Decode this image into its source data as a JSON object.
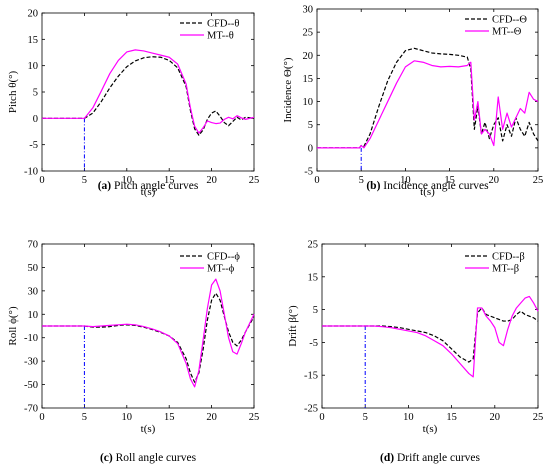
{
  "chart_data": [
    {
      "type": "line",
      "panel_tag": "(a)",
      "caption": "Pitch angle curves",
      "xlabel": "t(s)",
      "ylabel": "Pitch θ(°)",
      "xlim": [
        0,
        25
      ],
      "ylim": [
        -10,
        20
      ],
      "xticks": [
        0,
        5,
        10,
        15,
        20,
        25
      ],
      "yticks": [
        -10,
        -5,
        0,
        5,
        10,
        15,
        20
      ],
      "legend_position": "top-right",
      "grid": false,
      "event_line_x": 5,
      "series": [
        {
          "name": "CFD--θ",
          "color": "#000000",
          "dash": "dashed",
          "x": [
            0,
            5,
            6,
            7,
            8,
            9,
            10,
            11,
            12,
            13,
            14,
            15,
            16,
            17,
            17.5,
            18,
            18.5,
            19,
            19.5,
            20,
            20.5,
            21,
            21.5,
            22,
            22.5,
            23,
            23.5,
            24,
            25
          ],
          "y": [
            0,
            0,
            1.0,
            3.2,
            5.8,
            8.0,
            9.8,
            10.9,
            11.5,
            11.7,
            11.6,
            11.0,
            9.6,
            6.0,
            1.5,
            -2.0,
            -3.2,
            -2.2,
            -0.2,
            1.0,
            1.4,
            0.4,
            -0.8,
            -1.4,
            -0.6,
            0.2,
            -0.3,
            0.2,
            0.0
          ]
        },
        {
          "name": "MT--θ",
          "color": "#ff00ff",
          "dash": "solid",
          "x": [
            0,
            5,
            6,
            7,
            8,
            9,
            10,
            11,
            12,
            13,
            14,
            15,
            16,
            17,
            17.5,
            18,
            18.5,
            19,
            19.5,
            20,
            20.5,
            21,
            21.5,
            22,
            22.5,
            23,
            23.5,
            24,
            25
          ],
          "y": [
            0,
            0,
            2.0,
            5.2,
            8.5,
            11.0,
            12.6,
            13.0,
            12.8,
            12.4,
            12.0,
            11.6,
            10.3,
            6.5,
            2.0,
            -1.5,
            -2.8,
            -1.8,
            -0.5,
            -0.8,
            -1.0,
            -0.9,
            -0.2,
            0.2,
            -0.1,
            0.5,
            0.1,
            -0.2,
            0.2
          ]
        }
      ]
    },
    {
      "type": "line",
      "panel_tag": "(b)",
      "caption": "Incidence angle curves",
      "xlabel": "t(s)",
      "ylabel": "Incidence Θ(°)",
      "xlim": [
        0,
        25
      ],
      "ylim": [
        -5,
        30
      ],
      "xticks": [
        0,
        5,
        10,
        15,
        20,
        25
      ],
      "yticks": [
        -5,
        0,
        5,
        10,
        15,
        20,
        25,
        30
      ],
      "legend_position": "top-right",
      "grid": false,
      "event_line_x": 5,
      "series": [
        {
          "name": "CFD--Θ",
          "color": "#000000",
          "dash": "dashed",
          "x": [
            0,
            4.8,
            5.0,
            5.3,
            6,
            7,
            8,
            9,
            10,
            11,
            12,
            13,
            14,
            15,
            16,
            17,
            17.4,
            17.8,
            18.2,
            18.6,
            19,
            19.5,
            20,
            20.5,
            21,
            21.5,
            22,
            22.5,
            23,
            23.5,
            24,
            24.5,
            25
          ],
          "y": [
            0,
            0,
            0.5,
            0.3,
            3.0,
            9.0,
            14.5,
            18.5,
            21.0,
            21.5,
            21.0,
            20.5,
            20.3,
            20.2,
            20.0,
            19.6,
            17.0,
            4.0,
            9.0,
            3.0,
            5.5,
            2.0,
            5.0,
            6.5,
            1.5,
            5.0,
            2.5,
            6.5,
            4.0,
            2.5,
            5.5,
            3.0,
            1.5
          ]
        },
        {
          "name": "MT--Θ",
          "color": "#ff00ff",
          "dash": "solid",
          "x": [
            0,
            4.8,
            5.0,
            5.3,
            6,
            7,
            8,
            9,
            10,
            11,
            12,
            13,
            14,
            15,
            16,
            17,
            17.4,
            17.8,
            18.2,
            18.6,
            19,
            19.5,
            20,
            20.5,
            21,
            21.5,
            22,
            22.5,
            23,
            23.5,
            24,
            24.5,
            25
          ],
          "y": [
            0,
            0,
            0.5,
            0.0,
            2.0,
            6.0,
            10.0,
            14.0,
            17.5,
            18.8,
            18.5,
            17.8,
            17.5,
            17.6,
            17.5,
            17.8,
            18.5,
            6.0,
            10.0,
            3.0,
            4.0,
            3.0,
            0.5,
            11.0,
            4.0,
            7.5,
            4.5,
            6.5,
            8.5,
            7.5,
            12.0,
            10.5,
            10.0
          ]
        }
      ]
    },
    {
      "type": "line",
      "panel_tag": "(c)",
      "caption": "Roll angle curves",
      "xlabel": "t(s)",
      "ylabel": "Roll ϕ(°)",
      "xlim": [
        0,
        25
      ],
      "ylim": [
        -70,
        70
      ],
      "xticks": [
        0,
        5,
        10,
        15,
        20,
        25
      ],
      "yticks": [
        -70,
        -50,
        -30,
        -10,
        10,
        30,
        50,
        70
      ],
      "legend_position": "top-right",
      "grid": false,
      "event_line_x": 5,
      "series": [
        {
          "name": "CFD--ϕ",
          "color": "#000000",
          "dash": "dashed",
          "x": [
            0,
            5,
            6,
            7,
            8,
            9,
            10,
            11,
            12,
            13,
            14,
            15,
            16,
            17,
            17.5,
            18,
            18.5,
            19,
            19.5,
            20,
            20.5,
            21,
            21.5,
            22,
            22.5,
            23,
            23.5,
            24,
            25
          ],
          "y": [
            0,
            0,
            -1.0,
            -1.0,
            -0.5,
            0.5,
            1.0,
            0.5,
            -1.0,
            -3.0,
            -5.5,
            -8.5,
            -14.0,
            -28.0,
            -40.0,
            -48.0,
            -40.0,
            -20.0,
            5.0,
            22.0,
            28.0,
            22.0,
            8.0,
            -5.0,
            -14.0,
            -17.0,
            -12.0,
            -5.0,
            8.0
          ]
        },
        {
          "name": "MT--ϕ",
          "color": "#ff00ff",
          "dash": "solid",
          "x": [
            0,
            5,
            6,
            7,
            8,
            9,
            10,
            11,
            12,
            13,
            14,
            15,
            16,
            17,
            17.5,
            18,
            18.5,
            19,
            19.5,
            20,
            20.5,
            21,
            21.5,
            22,
            22.5,
            23,
            23.5,
            24,
            25
          ],
          "y": [
            0,
            0,
            -0.5,
            0.0,
            0.5,
            1.0,
            1.5,
            1.0,
            -0.5,
            -2.5,
            -5.0,
            -8.5,
            -15.0,
            -32.0,
            -45.0,
            -52.0,
            -38.0,
            -12.0,
            15.0,
            35.0,
            40.0,
            30.0,
            10.0,
            -10.0,
            -22.0,
            -24.0,
            -15.0,
            -5.0,
            10.0
          ]
        }
      ]
    },
    {
      "type": "line",
      "panel_tag": "(d)",
      "caption": "Drift angle curves",
      "xlabel": "t(s)",
      "ylabel": "Drift β(°)",
      "xlim": [
        0,
        25
      ],
      "ylim": [
        -25,
        25
      ],
      "xticks": [
        0,
        5,
        10,
        15,
        20,
        25
      ],
      "yticks": [
        -25,
        -15,
        -5,
        5,
        15,
        25
      ],
      "legend_position": "top-right",
      "grid": false,
      "event_line_x": 5,
      "series": [
        {
          "name": "CFD--β",
          "color": "#000000",
          "dash": "dashed",
          "x": [
            0,
            5,
            6,
            7,
            8,
            9,
            10,
            11,
            12,
            13,
            14,
            15,
            16,
            17,
            17.5,
            18,
            18.5,
            19,
            19.5,
            20,
            20.5,
            21,
            21.5,
            22,
            22.5,
            23,
            23.5,
            24,
            24.5,
            25
          ],
          "y": [
            0,
            0,
            0.0,
            0.0,
            -0.2,
            -0.5,
            -1.0,
            -1.5,
            -2.0,
            -3.0,
            -4.5,
            -7.0,
            -9.5,
            -11.0,
            -10.0,
            4.0,
            5.5,
            3.5,
            3.0,
            2.5,
            2.0,
            1.5,
            1.5,
            2.0,
            3.5,
            4.5,
            3.5,
            3.0,
            2.5,
            1.5
          ]
        },
        {
          "name": "MT--β",
          "color": "#ff00ff",
          "dash": "solid",
          "x": [
            0,
            5,
            6,
            7,
            8,
            9,
            10,
            11,
            12,
            13,
            14,
            15,
            16,
            17,
            17.5,
            18,
            18.5,
            19,
            19.5,
            20,
            20.5,
            21,
            21.5,
            22,
            22.5,
            23,
            23.5,
            24,
            24.5,
            25
          ],
          "y": [
            0,
            0,
            0.0,
            -0.2,
            -0.5,
            -1.0,
            -1.5,
            -2.0,
            -3.0,
            -4.5,
            -6.0,
            -8.5,
            -11.5,
            -14.5,
            -15.5,
            5.5,
            5.5,
            3.0,
            1.5,
            -0.5,
            -5.0,
            -6.0,
            -1.0,
            3.0,
            5.5,
            7.0,
            8.5,
            9.0,
            7.0,
            4.5
          ]
        }
      ]
    }
  ]
}
